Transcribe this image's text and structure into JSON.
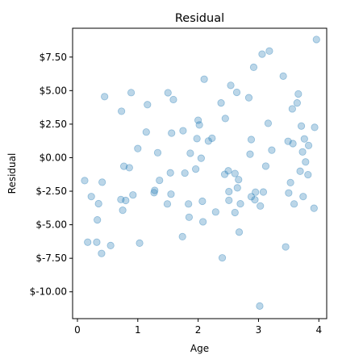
{
  "chart_data": {
    "type": "scatter",
    "title": "Residual",
    "xlabel": "Age",
    "ylabel": "Residual",
    "xlim": [
      -0.08,
      4.13
    ],
    "ylim": [
      -12.0,
      9.65
    ],
    "xticks": [
      0,
      1,
      2,
      3,
      4
    ],
    "xtick_labels": [
      "0",
      "1",
      "2",
      "3",
      "4"
    ],
    "yticks": [
      -10,
      -7.5,
      -5,
      -2.5,
      0,
      2.5,
      5,
      7.5
    ],
    "ytick_labels": [
      "$-10.00",
      "$-7.50",
      "$-5.00",
      "$-2.50",
      "$0.00",
      "$2.50",
      "$5.00",
      "$7.50"
    ],
    "grid": false,
    "marker_color": "#1f77b4",
    "marker_alpha": 0.3,
    "points": [
      {
        "x": 0.12,
        "y": -1.71
      },
      {
        "x": 0.17,
        "y": -6.3
      },
      {
        "x": 0.23,
        "y": -2.9
      },
      {
        "x": 0.32,
        "y": -6.3
      },
      {
        "x": 0.33,
        "y": -4.64
      },
      {
        "x": 0.35,
        "y": -3.43
      },
      {
        "x": 0.4,
        "y": -7.14
      },
      {
        "x": 0.41,
        "y": -1.83
      },
      {
        "x": 0.45,
        "y": 4.55
      },
      {
        "x": 0.55,
        "y": -6.55
      },
      {
        "x": 0.72,
        "y": -3.12
      },
      {
        "x": 0.73,
        "y": 3.46
      },
      {
        "x": 0.75,
        "y": -3.92
      },
      {
        "x": 0.77,
        "y": -0.64
      },
      {
        "x": 0.8,
        "y": -3.19
      },
      {
        "x": 0.86,
        "y": -0.75
      },
      {
        "x": 0.89,
        "y": 4.85
      },
      {
        "x": 0.92,
        "y": -2.78
      },
      {
        "x": 1.0,
        "y": 0.68
      },
      {
        "x": 1.03,
        "y": -6.37
      },
      {
        "x": 1.14,
        "y": 1.91
      },
      {
        "x": 1.16,
        "y": 3.95
      },
      {
        "x": 1.27,
        "y": -2.61
      },
      {
        "x": 1.28,
        "y": -2.44
      },
      {
        "x": 1.33,
        "y": 0.37
      },
      {
        "x": 1.36,
        "y": -1.69
      },
      {
        "x": 1.49,
        "y": -3.45
      },
      {
        "x": 1.5,
        "y": 4.84
      },
      {
        "x": 1.54,
        "y": -1.13
      },
      {
        "x": 1.55,
        "y": -2.72
      },
      {
        "x": 1.56,
        "y": 1.83
      },
      {
        "x": 1.59,
        "y": 4.33
      },
      {
        "x": 1.74,
        "y": -5.89
      },
      {
        "x": 1.75,
        "y": 2.01
      },
      {
        "x": 1.78,
        "y": -1.15
      },
      {
        "x": 1.84,
        "y": -3.45
      },
      {
        "x": 1.85,
        "y": -4.44
      },
      {
        "x": 1.87,
        "y": 0.33
      },
      {
        "x": 1.96,
        "y": -0.85
      },
      {
        "x": 1.98,
        "y": 1.42
      },
      {
        "x": 2.0,
        "y": 2.79
      },
      {
        "x": 2.02,
        "y": 2.44
      },
      {
        "x": 2.05,
        "y": -0.04
      },
      {
        "x": 2.07,
        "y": -3.25
      },
      {
        "x": 2.08,
        "y": -4.78
      },
      {
        "x": 2.1,
        "y": 5.85
      },
      {
        "x": 2.17,
        "y": 1.24
      },
      {
        "x": 2.23,
        "y": 1.45
      },
      {
        "x": 2.29,
        "y": -4.05
      },
      {
        "x": 2.38,
        "y": 4.08
      },
      {
        "x": 2.4,
        "y": -7.47
      },
      {
        "x": 2.44,
        "y": -1.24
      },
      {
        "x": 2.45,
        "y": 2.92
      },
      {
        "x": 2.5,
        "y": -0.98
      },
      {
        "x": 2.51,
        "y": -2.53
      },
      {
        "x": 2.51,
        "y": -3.18
      },
      {
        "x": 2.54,
        "y": 5.39
      },
      {
        "x": 2.61,
        "y": -1.18
      },
      {
        "x": 2.61,
        "y": -4.09
      },
      {
        "x": 2.64,
        "y": 4.87
      },
      {
        "x": 2.65,
        "y": -2.25
      },
      {
        "x": 2.67,
        "y": -1.64
      },
      {
        "x": 2.68,
        "y": -5.55
      },
      {
        "x": 2.7,
        "y": -3.44
      },
      {
        "x": 2.84,
        "y": 4.47
      },
      {
        "x": 2.86,
        "y": 0.26
      },
      {
        "x": 2.88,
        "y": -2.91
      },
      {
        "x": 2.88,
        "y": 1.35
      },
      {
        "x": 2.92,
        "y": 6.74
      },
      {
        "x": 2.94,
        "y": -3.14
      },
      {
        "x": 2.95,
        "y": -2.57
      },
      {
        "x": 3.02,
        "y": -11.06
      },
      {
        "x": 3.03,
        "y": -3.6
      },
      {
        "x": 3.06,
        "y": 7.72
      },
      {
        "x": 3.08,
        "y": -2.56
      },
      {
        "x": 3.12,
        "y": -0.63
      },
      {
        "x": 3.16,
        "y": 2.56
      },
      {
        "x": 3.18,
        "y": 7.95
      },
      {
        "x": 3.22,
        "y": 0.56
      },
      {
        "x": 3.41,
        "y": 6.08
      },
      {
        "x": 3.45,
        "y": -6.65
      },
      {
        "x": 3.49,
        "y": 1.22
      },
      {
        "x": 3.5,
        "y": -2.63
      },
      {
        "x": 3.53,
        "y": -1.86
      },
      {
        "x": 3.56,
        "y": 3.64
      },
      {
        "x": 3.57,
        "y": 1.05
      },
      {
        "x": 3.59,
        "y": -3.45
      },
      {
        "x": 3.64,
        "y": 4.08
      },
      {
        "x": 3.66,
        "y": 4.75
      },
      {
        "x": 3.69,
        "y": -1.01
      },
      {
        "x": 3.71,
        "y": 2.36
      },
      {
        "x": 3.73,
        "y": 0.43
      },
      {
        "x": 3.74,
        "y": -2.9
      },
      {
        "x": 3.76,
        "y": 1.4
      },
      {
        "x": 3.78,
        "y": -0.32
      },
      {
        "x": 3.82,
        "y": -1.27
      },
      {
        "x": 3.83,
        "y": 0.91
      },
      {
        "x": 3.92,
        "y": -3.77
      },
      {
        "x": 3.93,
        "y": 2.26
      },
      {
        "x": 3.96,
        "y": 8.81
      }
    ]
  }
}
